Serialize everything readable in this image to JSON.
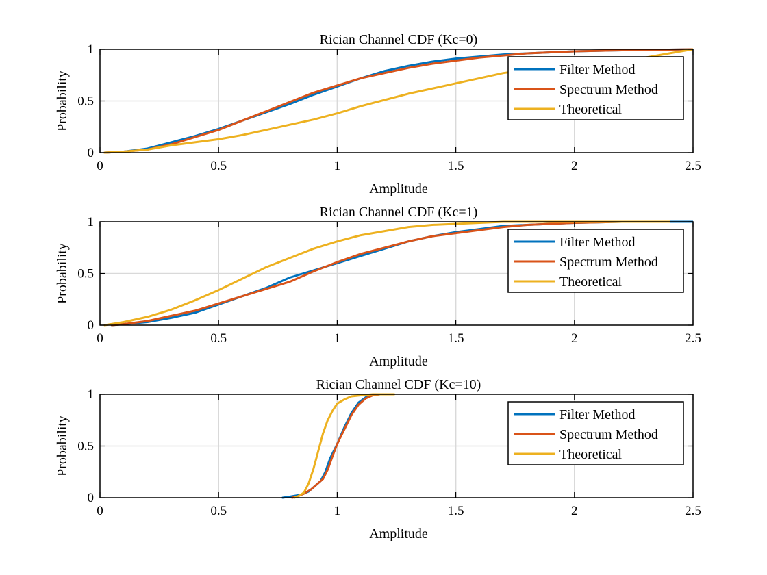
{
  "chart_data": [
    {
      "type": "line",
      "title": "Rician Channel CDF (Kc=0)",
      "xlabel": "Amplitude",
      "ylabel": "Probability",
      "xlim": [
        0,
        2.5
      ],
      "ylim": [
        0,
        1
      ],
      "xticks": [
        "0",
        "0.5",
        "1",
        "1.5",
        "2",
        "2.5"
      ],
      "yticks": [
        "0",
        "0.5",
        "1"
      ],
      "grid": true,
      "legend_position": "top-right",
      "series": [
        {
          "name": "Filter Method",
          "color": "#0072BD",
          "x": [
            0.02,
            0.1,
            0.2,
            0.3,
            0.4,
            0.5,
            0.6,
            0.7,
            0.8,
            0.9,
            1.0,
            1.1,
            1.2,
            1.3,
            1.4,
            1.5,
            1.6,
            1.7,
            1.8,
            2.0,
            2.2,
            2.5
          ],
          "y": [
            0,
            0.01,
            0.04,
            0.1,
            0.16,
            0.23,
            0.31,
            0.39,
            0.47,
            0.56,
            0.64,
            0.72,
            0.79,
            0.84,
            0.88,
            0.91,
            0.93,
            0.95,
            0.96,
            0.98,
            0.99,
            1.0
          ]
        },
        {
          "name": "Spectrum Method",
          "color": "#D95319",
          "x": [
            0.02,
            0.1,
            0.2,
            0.3,
            0.4,
            0.5,
            0.6,
            0.7,
            0.8,
            0.9,
            1.0,
            1.1,
            1.2,
            1.3,
            1.4,
            1.5,
            1.6,
            1.7,
            1.8,
            2.0,
            2.2,
            2.5
          ],
          "y": [
            0,
            0.01,
            0.03,
            0.08,
            0.15,
            0.22,
            0.31,
            0.4,
            0.49,
            0.58,
            0.65,
            0.72,
            0.77,
            0.82,
            0.86,
            0.89,
            0.92,
            0.94,
            0.96,
            0.98,
            0.99,
            1.0
          ]
        },
        {
          "name": "Theoretical",
          "color": "#EDB120",
          "x": [
            0.02,
            0.1,
            0.2,
            0.3,
            0.4,
            0.5,
            0.6,
            0.7,
            0.8,
            0.9,
            1.0,
            1.1,
            1.2,
            1.3,
            1.4,
            1.5,
            1.6,
            1.7,
            1.8,
            1.9,
            2.0,
            2.1,
            2.2,
            2.3,
            2.4,
            2.5
          ],
          "y": [
            0,
            0.01,
            0.03,
            0.07,
            0.1,
            0.13,
            0.17,
            0.22,
            0.27,
            0.32,
            0.38,
            0.45,
            0.51,
            0.57,
            0.62,
            0.67,
            0.72,
            0.77,
            0.8,
            0.83,
            0.86,
            0.88,
            0.9,
            0.92,
            0.96,
            1.0
          ]
        }
      ]
    },
    {
      "type": "line",
      "title": "Rician Channel CDF (Kc=1)",
      "xlabel": "Amplitude",
      "ylabel": "Probability",
      "xlim": [
        0,
        2.5
      ],
      "ylim": [
        0,
        1
      ],
      "xticks": [
        "0",
        "0.5",
        "1",
        "1.5",
        "2",
        "2.5"
      ],
      "yticks": [
        "0",
        "0.5",
        "1"
      ],
      "grid": true,
      "legend_position": "top-right",
      "series": [
        {
          "name": "Filter Method",
          "color": "#0072BD",
          "x": [
            0.05,
            0.1,
            0.2,
            0.3,
            0.4,
            0.5,
            0.6,
            0.7,
            0.8,
            0.9,
            1.0,
            1.1,
            1.2,
            1.3,
            1.4,
            1.5,
            1.6,
            1.7,
            1.8,
            1.9,
            2.0,
            2.2,
            2.4,
            2.5
          ],
          "y": [
            0,
            0.01,
            0.03,
            0.07,
            0.12,
            0.2,
            0.28,
            0.36,
            0.46,
            0.53,
            0.6,
            0.67,
            0.74,
            0.81,
            0.86,
            0.9,
            0.93,
            0.96,
            0.97,
            0.98,
            0.99,
            1.0,
            1.0,
            1.0
          ]
        },
        {
          "name": "Spectrum Method",
          "color": "#D95319",
          "x": [
            0.05,
            0.1,
            0.2,
            0.3,
            0.4,
            0.5,
            0.6,
            0.7,
            0.8,
            0.9,
            1.0,
            1.1,
            1.2,
            1.3,
            1.4,
            1.5,
            1.6,
            1.7,
            1.8,
            1.9,
            2.0,
            2.2,
            2.4
          ],
          "y": [
            0,
            0.01,
            0.04,
            0.09,
            0.14,
            0.21,
            0.28,
            0.35,
            0.42,
            0.52,
            0.61,
            0.69,
            0.75,
            0.81,
            0.86,
            0.89,
            0.92,
            0.95,
            0.97,
            0.98,
            0.99,
            1.0,
            1.0
          ]
        },
        {
          "name": "Theoretical",
          "color": "#EDB120",
          "x": [
            0.02,
            0.1,
            0.2,
            0.3,
            0.4,
            0.5,
            0.6,
            0.7,
            0.8,
            0.9,
            1.0,
            1.1,
            1.2,
            1.3,
            1.4,
            1.5,
            1.6,
            1.7,
            1.8,
            2.0,
            2.2,
            2.4
          ],
          "y": [
            0,
            0.03,
            0.08,
            0.15,
            0.24,
            0.34,
            0.45,
            0.56,
            0.65,
            0.74,
            0.81,
            0.87,
            0.91,
            0.95,
            0.97,
            0.98,
            0.99,
            1.0,
            1.0,
            1.0,
            1.0,
            1.0
          ]
        }
      ]
    },
    {
      "type": "line",
      "title": "Rician Channel CDF (Kc=10)",
      "xlabel": "Amplitude",
      "ylabel": "Probability",
      "xlim": [
        0,
        2.5
      ],
      "ylim": [
        0,
        1
      ],
      "xticks": [
        "0",
        "0.5",
        "1",
        "1.5",
        "2",
        "2.5"
      ],
      "yticks": [
        "0",
        "0.5",
        "1"
      ],
      "grid": true,
      "legend_position": "top-right",
      "series": [
        {
          "name": "Filter Method",
          "color": "#0072BD",
          "x": [
            0.77,
            0.8,
            0.85,
            0.88,
            0.9,
            0.93,
            0.95,
            0.97,
            1.0,
            1.03,
            1.06,
            1.09,
            1.12,
            1.15,
            1.18
          ],
          "y": [
            0,
            0.01,
            0.03,
            0.06,
            0.1,
            0.16,
            0.25,
            0.38,
            0.52,
            0.68,
            0.82,
            0.92,
            0.97,
            0.99,
            1.0
          ]
        },
        {
          "name": "Spectrum Method",
          "color": "#D95319",
          "x": [
            0.81,
            0.83,
            0.86,
            0.89,
            0.91,
            0.94,
            0.96,
            0.98,
            1.0,
            1.03,
            1.06,
            1.09,
            1.12,
            1.15,
            1.18
          ],
          "y": [
            0,
            0.01,
            0.04,
            0.08,
            0.12,
            0.18,
            0.27,
            0.4,
            0.52,
            0.66,
            0.8,
            0.9,
            0.96,
            0.99,
            1.0
          ]
        },
        {
          "name": "Theoretical",
          "color": "#EDB120",
          "x": [
            0.82,
            0.84,
            0.86,
            0.88,
            0.9,
            0.92,
            0.94,
            0.96,
            0.98,
            1.0,
            1.03,
            1.06,
            1.1,
            1.15,
            1.2,
            1.24
          ],
          "y": [
            0,
            0.02,
            0.05,
            0.14,
            0.28,
            0.45,
            0.62,
            0.75,
            0.84,
            0.91,
            0.95,
            0.98,
            0.99,
            1.0,
            1.0,
            1.0
          ]
        }
      ]
    }
  ]
}
